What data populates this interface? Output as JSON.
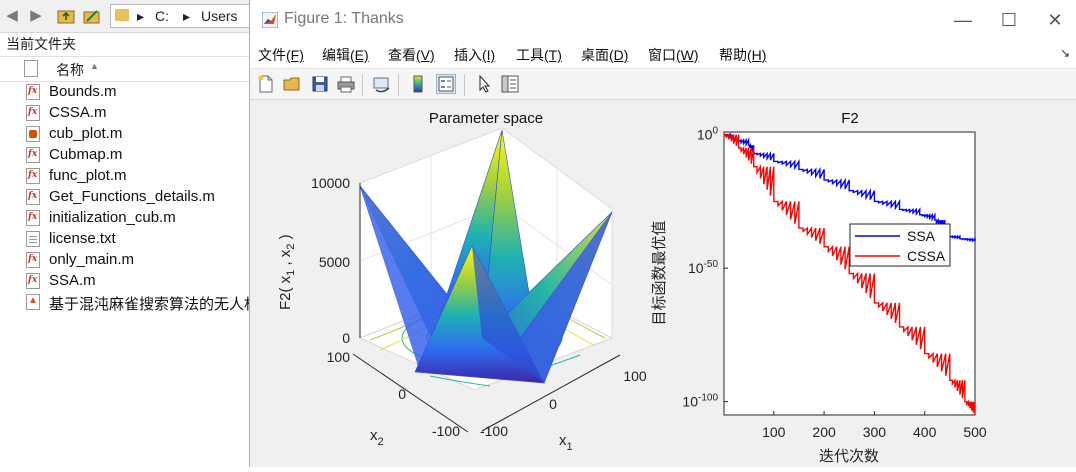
{
  "browser": {
    "address": {
      "drive": "C:",
      "folder": "Users"
    },
    "current_folder_label": "当前文件夹",
    "column_header": "名称",
    "files": [
      {
        "name": "Bounds.m",
        "icon": "fx"
      },
      {
        "name": "CSSA.m",
        "icon": "fx"
      },
      {
        "name": "cub_plot.m",
        "icon": "live"
      },
      {
        "name": "Cubmap.m",
        "icon": "fx"
      },
      {
        "name": "func_plot.m",
        "icon": "fx"
      },
      {
        "name": "Get_Functions_details.m",
        "icon": "fx"
      },
      {
        "name": "initialization_cub.m",
        "icon": "fx"
      },
      {
        "name": "license.txt",
        "icon": "txt"
      },
      {
        "name": "only_main.m",
        "icon": "fx"
      },
      {
        "name": "SSA.m",
        "icon": "fx"
      },
      {
        "name": "基于混沌麻雀搜索算法的无人机",
        "icon": "app"
      }
    ]
  },
  "figure": {
    "title": "Figure 1: Thanks",
    "menus": [
      {
        "label": "文件",
        "key": "(F)"
      },
      {
        "label": "编辑",
        "key": "(E)"
      },
      {
        "label": "查看",
        "key": "(V)"
      },
      {
        "label": "插入",
        "key": "(I)"
      },
      {
        "label": "工具",
        "key": "(T)"
      },
      {
        "label": "桌面",
        "key": "(D)"
      },
      {
        "label": "窗口",
        "key": "(W)"
      },
      {
        "label": "帮助",
        "key": "(H)"
      }
    ],
    "toolbar_icons": [
      "new-figure-icon",
      "open-file-icon",
      "save-icon",
      "print-icon",
      "link-plot-icon",
      "colorbar-icon",
      "legend-icon",
      "pointer-icon",
      "property-inspector-icon"
    ]
  },
  "chart_data": [
    {
      "type": "surface",
      "title": "Parameter space",
      "zlabel": "F2( x",
      "zlabel_sub1": "1",
      "zlabel_sep": " , x",
      "zlabel_sub2": "2",
      "zlabel_end": " )",
      "xlabel": "x",
      "xlabel_sub": "1",
      "ylabel": "x",
      "ylabel_sub": "2",
      "x_ticks": [
        "-100",
        "0",
        "100"
      ],
      "y_ticks": [
        "-100",
        "0",
        "100"
      ],
      "z_ticks": [
        "0",
        "5000",
        "10000"
      ],
      "xlim": [
        -100,
        100
      ],
      "ylim": [
        -100,
        100
      ],
      "zlim": [
        0,
        10000
      ],
      "function": "|x1|+|x2|+|x1|*|x2|",
      "colormap": "parula",
      "contours_on_base": true,
      "grid": true
    },
    {
      "type": "line",
      "title": "F2",
      "xlabel": "迭代次数",
      "ylabel": "目标函数最优值",
      "y_scale": "log",
      "xlim": [
        1,
        500
      ],
      "ylim_exp": [
        -105,
        1
      ],
      "x_ticks": [
        100,
        200,
        300,
        400,
        500
      ],
      "y_ticks": [
        {
          "base": "10",
          "exp": "0",
          "value_exp": 0
        },
        {
          "base": "10",
          "exp": "-50",
          "value_exp": -50
        },
        {
          "base": "10",
          "exp": "-100",
          "value_exp": -100
        }
      ],
      "legend_position": "right",
      "series": [
        {
          "name": "SSA",
          "color": "#0000ff",
          "x": [
            1,
            20,
            50,
            60,
            100,
            150,
            200,
            250,
            300,
            350,
            390,
            420,
            440,
            470,
            500
          ],
          "log10_y": [
            0,
            -2,
            -4,
            -7,
            -10,
            -13,
            -17,
            -21,
            -25,
            -28,
            -30,
            -32,
            -38,
            -39,
            -40
          ]
        },
        {
          "name": "CSSA",
          "color": "#ff0000",
          "x": [
            1,
            30,
            60,
            100,
            150,
            200,
            250,
            300,
            350,
            400,
            450,
            480,
            500
          ],
          "log10_y": [
            0,
            -5,
            -12,
            -25,
            -35,
            -42,
            -52,
            -63,
            -72,
            -82,
            -92,
            -100,
            -105
          ]
        }
      ]
    }
  ]
}
